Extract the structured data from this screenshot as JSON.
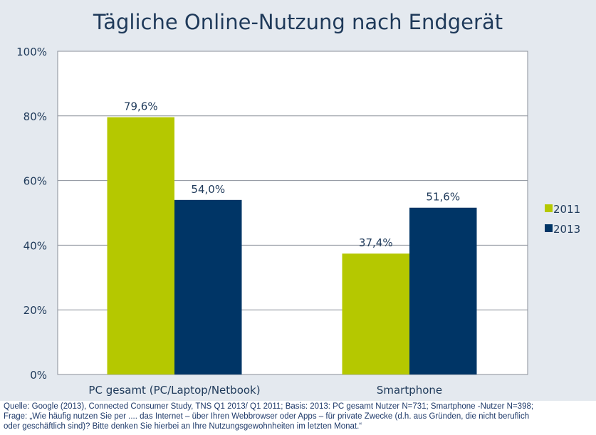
{
  "chart_data": {
    "type": "bar",
    "title": "Tägliche Online-Nutzung nach Endgerät",
    "categories": [
      "PC gesamt (PC/Laptop/Netbook)",
      "Smartphone"
    ],
    "series": [
      {
        "name": "2011",
        "values": [
          79.6,
          37.4
        ],
        "labels": [
          "79,6%",
          "37,4%"
        ],
        "color": "#b5c800"
      },
      {
        "name": "2013",
        "values": [
          54.0,
          51.6
        ],
        "labels": [
          "54,0%",
          "51,6%"
        ],
        "color": "#003566"
      }
    ],
    "ylim": [
      0,
      100
    ],
    "yticks": [
      0,
      20,
      40,
      60,
      80,
      100
    ],
    "ytick_labels": [
      "0%",
      "20%",
      "40%",
      "60%",
      "80%",
      "100%"
    ],
    "grid": true,
    "legend": "right"
  },
  "footer": [
    "Quelle: Google (2013), Connected Consumer Study, TNS Q1 2013/ Q1 2011; Basis: 2013: PC gesamt Nutzer N=731; Smartphone -Nutzer N=398;",
    "Frage: „Wie häufig nutzen Sie per .... das Internet – über Ihren Webbrowser oder Apps – für private Zwecke (d.h. aus Gründen, die nicht beruflich",
    "oder geschäftlich sind)? Bitte denken Sie hierbei an Ihre Nutzungsgewohnheiten im letzten Monat.“"
  ]
}
